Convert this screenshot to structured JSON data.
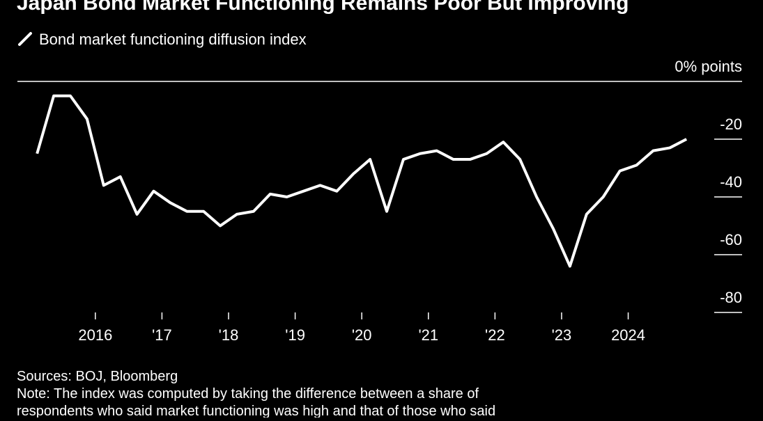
{
  "chart_data": {
    "type": "line",
    "title": "Japan Bond Market Functioning Remains Poor But Improving",
    "series": [
      {
        "name": "Bond market functioning diffusion index",
        "color": "#ffffff",
        "values": [
          -25,
          -5,
          -5,
          -13,
          -36,
          -33,
          -46,
          -38,
          -42,
          -45,
          -45,
          -50,
          -46,
          -45,
          -39,
          -40,
          -38,
          -36,
          -38,
          -32,
          -27,
          -45,
          -27,
          -25,
          -24,
          -27,
          -27,
          -25,
          -21,
          -27,
          -40,
          -51,
          -64,
          -46,
          -40,
          -31,
          -29,
          -24,
          -23,
          -20
        ]
      }
    ],
    "x": [
      2015.125,
      2015.375,
      2015.625,
      2015.875,
      2016.125,
      2016.375,
      2016.625,
      2016.875,
      2017.125,
      2017.375,
      2017.625,
      2017.875,
      2018.125,
      2018.375,
      2018.625,
      2018.875,
      2019.125,
      2019.375,
      2019.625,
      2019.875,
      2020.125,
      2020.375,
      2020.625,
      2020.875,
      2021.125,
      2021.375,
      2021.625,
      2021.875,
      2022.125,
      2022.375,
      2022.625,
      2022.875,
      2023.125,
      2023.375,
      2023.625,
      2023.875,
      2024.125,
      2024.375,
      2024.625,
      2024.875
    ],
    "xlim": [
      2014.83,
      2025.71
    ],
    "xticks": [
      2016,
      {
        "value": 2017,
        "label": "'17"
      },
      {
        "value": 2018,
        "label": "'18"
      },
      {
        "value": 2019,
        "label": "'19"
      },
      {
        "value": 2020,
        "label": "'20"
      },
      {
        "value": 2021,
        "label": "'21"
      },
      {
        "value": 2022,
        "label": "'22"
      },
      {
        "value": 2023,
        "label": "'23"
      },
      2024
    ],
    "ylim": [
      -80,
      0
    ],
    "yticks": [
      {
        "value": 0,
        "label": "0% points"
      },
      -20,
      -40,
      -60,
      -80
    ],
    "source": "Sources: BOJ, Bloomberg",
    "note": [
      "Note: The index was computed by taking the difference between a share of",
      "respondents who said market functioning was high and that of those who said"
    ]
  }
}
